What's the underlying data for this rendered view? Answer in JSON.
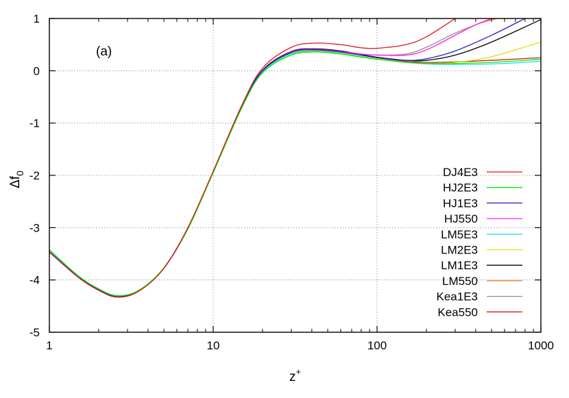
{
  "chart_data": {
    "type": "line",
    "panel_label": "(a)",
    "xlabel": "z",
    "xlabel_sup": "+",
    "ylabel": "Δf",
    "ylabel_sub": "0",
    "x_scale": "log",
    "xlim": [
      1,
      1000
    ],
    "ylim": [
      -5,
      1
    ],
    "x_ticks": [
      1,
      10,
      100,
      1000
    ],
    "x_tick_labels": [
      "1",
      "10",
      "100",
      "1000"
    ],
    "y_ticks": [
      -5,
      -4,
      -3,
      -2,
      -1,
      0,
      1
    ],
    "y_tick_labels": [
      "-5",
      "-4",
      "-3",
      "-2",
      "-1",
      "0",
      "1"
    ],
    "grid": true,
    "legend_position": "bottom-right",
    "series": [
      {
        "name": "DJ4E3",
        "color": "#e8151d",
        "x": [
          1,
          1.5,
          2,
          2.6,
          3.5,
          5,
          7,
          10,
          15,
          20,
          30,
          42,
          60,
          80,
          100,
          150,
          200,
          300
        ],
        "y": [
          -3.47,
          -3.95,
          -4.2,
          -4.33,
          -4.22,
          -3.78,
          -3.0,
          -1.92,
          -0.65,
          0.05,
          0.45,
          0.53,
          0.5,
          0.44,
          0.43,
          0.5,
          0.65,
          1.0
        ]
      },
      {
        "name": "HJ2E3",
        "color": "#00ee00",
        "x": [
          1,
          1.5,
          2,
          2.6,
          3.5,
          5,
          7,
          10,
          15,
          20,
          30,
          42,
          60,
          80,
          100,
          150,
          200,
          300,
          500,
          1000
        ],
        "y": [
          -3.42,
          -3.92,
          -4.17,
          -4.3,
          -4.2,
          -3.77,
          -3.03,
          -1.95,
          -0.7,
          -0.04,
          0.3,
          0.36,
          0.32,
          0.26,
          0.22,
          0.16,
          0.14,
          0.14,
          0.16,
          0.22
        ]
      },
      {
        "name": "HJ1E3",
        "color": "#2020c0",
        "x": [
          1,
          1.5,
          2,
          2.6,
          3.5,
          5,
          7,
          10,
          15,
          20,
          30,
          42,
          60,
          80,
          100,
          150,
          200,
          300,
          500,
          800
        ],
        "y": [
          -3.46,
          -3.94,
          -4.19,
          -4.32,
          -4.21,
          -3.77,
          -3.01,
          -1.93,
          -0.66,
          0.0,
          0.35,
          0.4,
          0.36,
          0.3,
          0.25,
          0.2,
          0.23,
          0.38,
          0.68,
          1.0
        ]
      },
      {
        "name": "HJ550",
        "color": "#ff20ff",
        "x": [
          1,
          1.5,
          2,
          2.6,
          3.5,
          5,
          7,
          10,
          15,
          20,
          30,
          42,
          60,
          80,
          100,
          150,
          200,
          300,
          400,
          500
        ],
        "y": [
          -3.46,
          -3.94,
          -4.19,
          -4.32,
          -4.21,
          -3.77,
          -3.01,
          -1.93,
          -0.66,
          0.0,
          0.36,
          0.41,
          0.37,
          0.32,
          0.3,
          0.3,
          0.4,
          0.68,
          0.88,
          1.0
        ]
      },
      {
        "name": "LM5E3",
        "color": "#20e0e8",
        "x": [
          1,
          1.5,
          2,
          2.6,
          3.5,
          5,
          7,
          10,
          15,
          20,
          30,
          42,
          60,
          80,
          100,
          150,
          200,
          300,
          500,
          1000
        ],
        "y": [
          -3.45,
          -3.93,
          -4.18,
          -4.31,
          -4.21,
          -3.77,
          -3.02,
          -1.94,
          -0.68,
          -0.02,
          0.32,
          0.37,
          0.33,
          0.27,
          0.22,
          0.16,
          0.13,
          0.12,
          0.13,
          0.18
        ]
      },
      {
        "name": "LM2E3",
        "color": "#e0e000",
        "x": [
          1,
          1.5,
          2,
          2.6,
          3.5,
          5,
          7,
          10,
          15,
          20,
          30,
          42,
          60,
          80,
          100,
          150,
          200,
          300,
          500,
          1000
        ],
        "y": [
          -3.45,
          -3.93,
          -4.18,
          -4.31,
          -4.21,
          -3.77,
          -3.02,
          -1.93,
          -0.67,
          -0.01,
          0.33,
          0.38,
          0.34,
          0.28,
          0.23,
          0.16,
          0.14,
          0.16,
          0.27,
          0.55
        ]
      },
      {
        "name": "LM1E3",
        "color": "#000000",
        "x": [
          1,
          1.5,
          2,
          2.6,
          3.5,
          5,
          7,
          10,
          15,
          20,
          30,
          42,
          60,
          80,
          100,
          150,
          200,
          300,
          500,
          1000
        ],
        "y": [
          -3.46,
          -3.94,
          -4.19,
          -4.32,
          -4.21,
          -3.77,
          -3.01,
          -1.93,
          -0.66,
          0.01,
          0.37,
          0.42,
          0.38,
          0.31,
          0.26,
          0.2,
          0.2,
          0.3,
          0.55,
          0.98
        ]
      },
      {
        "name": "LM550",
        "color": "#ff7020",
        "x": [
          1,
          1.5,
          2,
          2.6,
          3.5,
          5,
          7,
          10,
          15,
          20,
          30,
          42,
          60,
          80,
          100,
          150,
          200,
          300,
          400,
          540
        ],
        "y": [
          -3.46,
          -3.94,
          -4.19,
          -4.32,
          -4.21,
          -3.77,
          -3.01,
          -1.93,
          -0.66,
          0.0,
          0.36,
          0.41,
          0.37,
          0.32,
          0.3,
          0.3,
          0.4,
          0.68,
          0.88,
          1.0
        ]
      },
      {
        "name": "Kea1E3",
        "color": "#909090",
        "x": [
          1,
          1.5,
          2,
          2.6,
          3.5,
          5,
          7,
          10,
          15,
          20,
          30,
          42,
          60,
          80,
          100,
          150,
          200,
          300,
          500
        ],
        "y": [
          -3.46,
          -3.94,
          -4.19,
          -4.32,
          -4.21,
          -3.77,
          -3.01,
          -1.93,
          -0.66,
          0.0,
          0.36,
          0.41,
          0.37,
          0.32,
          0.3,
          0.32,
          0.45,
          0.72,
          1.0
        ]
      },
      {
        "name": "Kea550",
        "color": "#c82020",
        "x": [
          1,
          1.5,
          2,
          2.6,
          3.5,
          5,
          7,
          10,
          15,
          20,
          30,
          42,
          60,
          80,
          100,
          150,
          200,
          300,
          500,
          1000
        ],
        "y": [
          -3.46,
          -3.94,
          -4.19,
          -4.32,
          -4.21,
          -3.77,
          -3.01,
          -1.93,
          -0.66,
          0.0,
          0.35,
          0.4,
          0.36,
          0.3,
          0.25,
          0.18,
          0.16,
          0.17,
          0.2,
          0.25
        ]
      }
    ]
  }
}
